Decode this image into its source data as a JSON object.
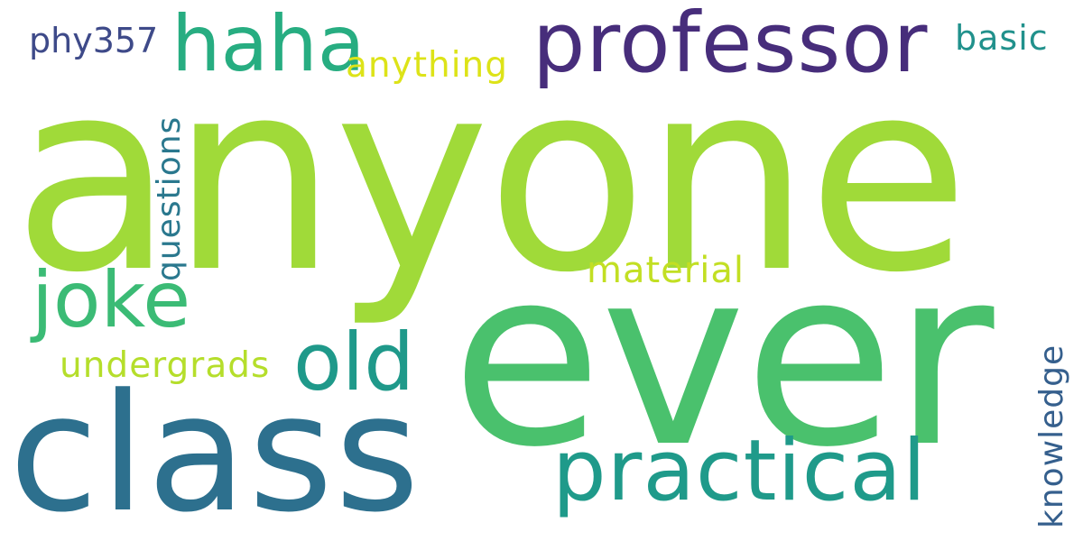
{
  "words": [
    {
      "text": "anyone",
      "color": "#a0da39"
    },
    {
      "text": "ever",
      "color": "#4ac16d"
    },
    {
      "text": "class",
      "color": "#2d708e"
    },
    {
      "text": "professor",
      "color": "#472d7b"
    },
    {
      "text": "haha",
      "color": "#27ad81"
    },
    {
      "text": "practical",
      "color": "#1f9a8a"
    },
    {
      "text": "joke",
      "color": "#3bbb75"
    },
    {
      "text": "old",
      "color": "#1f998a"
    },
    {
      "text": "questions",
      "color": "#2a788e"
    },
    {
      "text": "material",
      "color": "#c2df23"
    },
    {
      "text": "undergrads",
      "color": "#b5de2b"
    },
    {
      "text": "knowledge",
      "color": "#355f8d"
    },
    {
      "text": "anything",
      "color": "#dde318"
    },
    {
      "text": "basic",
      "color": "#21918c"
    },
    {
      "text": "phy357",
      "color": "#3e4a89"
    }
  ]
}
